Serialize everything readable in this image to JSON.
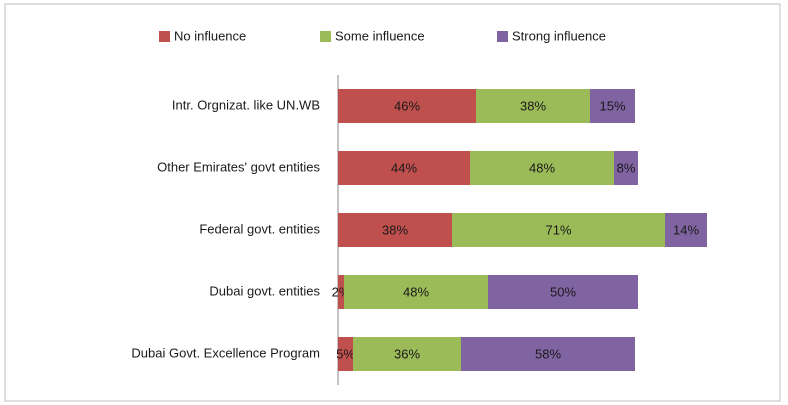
{
  "chart_data": {
    "type": "stacked-barh",
    "categories": [
      "Intr. Orgnizat. like UN.WB",
      "Other Emirates' govt entities",
      "Federal govt. entities",
      "Dubai govt. entities",
      "Dubai Govt. Excellence Program"
    ],
    "series": [
      {
        "name": "No influence",
        "color": "#c0504d",
        "values": [
          46,
          44,
          38,
          2,
          5
        ],
        "value_labels": [
          "46%",
          "44%",
          "38%",
          "2%",
          "5%"
        ]
      },
      {
        "name": "Some influence",
        "color": "#9bbb59",
        "values": [
          38,
          48,
          71,
          48,
          36
        ],
        "value_labels": [
          "38%",
          "48%",
          "71%",
          "48%",
          "36%"
        ]
      },
      {
        "name": "Strong influence",
        "color": "#8064a2",
        "values": [
          15,
          8,
          14,
          50,
          58
        ],
        "value_labels": [
          "15%",
          "8%",
          "14%",
          "50%",
          "58%"
        ]
      }
    ],
    "legend": "top"
  }
}
